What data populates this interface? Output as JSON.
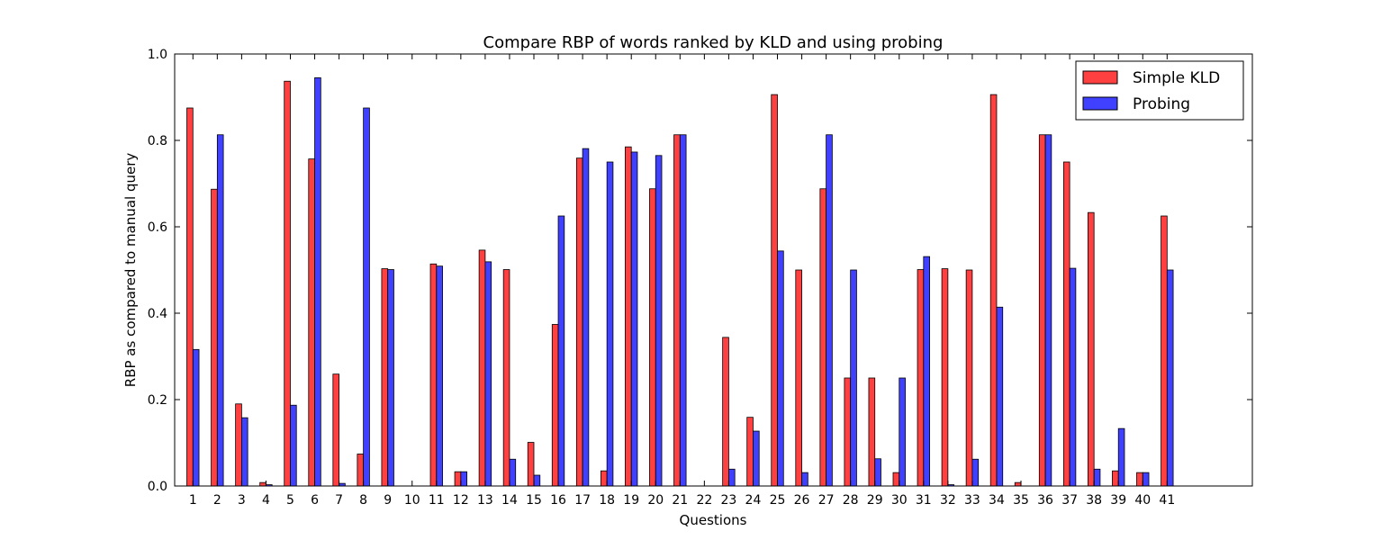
{
  "chart_data": {
    "type": "bar",
    "title": "Compare RBP of words ranked by KLD and using probing",
    "xlabel": "Questions",
    "ylabel": "RBP as compared to manual query",
    "ylim": [
      0,
      1.0
    ],
    "xlim": [
      0.25,
      44.5
    ],
    "yticks": [
      "0.0",
      "0.2",
      "0.4",
      "0.6",
      "0.8",
      "1.0"
    ],
    "grid": false,
    "legend_position": "top-right",
    "categories": [
      "1",
      "2",
      "3",
      "4",
      "5",
      "6",
      "7",
      "8",
      "9",
      "10",
      "11",
      "12",
      "13",
      "14",
      "15",
      "16",
      "17",
      "18",
      "19",
      "20",
      "21",
      "22",
      "23",
      "24",
      "25",
      "26",
      "27",
      "28",
      "29",
      "30",
      "31",
      "32",
      "33",
      "34",
      "35",
      "36",
      "37",
      "38",
      "39",
      "40",
      "41"
    ],
    "series": [
      {
        "name": "Simple KLD",
        "color": "#ff4040",
        "values": [
          0.875,
          0.687,
          0.19,
          0.008,
          0.937,
          0.757,
          0.259,
          0.074,
          0.503,
          0.0,
          0.514,
          0.033,
          0.546,
          0.501,
          0.101,
          0.374,
          0.759,
          0.035,
          0.785,
          0.688,
          0.813,
          0.0,
          0.344,
          0.159,
          0.906,
          0.5,
          0.688,
          0.25,
          0.25,
          0.031,
          0.501,
          0.503,
          0.5,
          0.906,
          0.008,
          0.813,
          0.75,
          0.633,
          0.035,
          0.031,
          0.625
        ]
      },
      {
        "name": "Probing",
        "color": "#4040ff",
        "values": [
          0.316,
          0.813,
          0.158,
          0.003,
          0.187,
          0.945,
          0.006,
          0.875,
          0.501,
          0.0,
          0.509,
          0.033,
          0.519,
          0.062,
          0.025,
          0.625,
          0.781,
          0.75,
          0.773,
          0.765,
          0.813,
          0.0,
          0.039,
          0.127,
          0.544,
          0.031,
          0.813,
          0.5,
          0.063,
          0.25,
          0.531,
          0.003,
          0.062,
          0.414,
          0.0,
          0.813,
          0.504,
          0.039,
          0.133,
          0.031,
          0.5
        ]
      }
    ]
  }
}
